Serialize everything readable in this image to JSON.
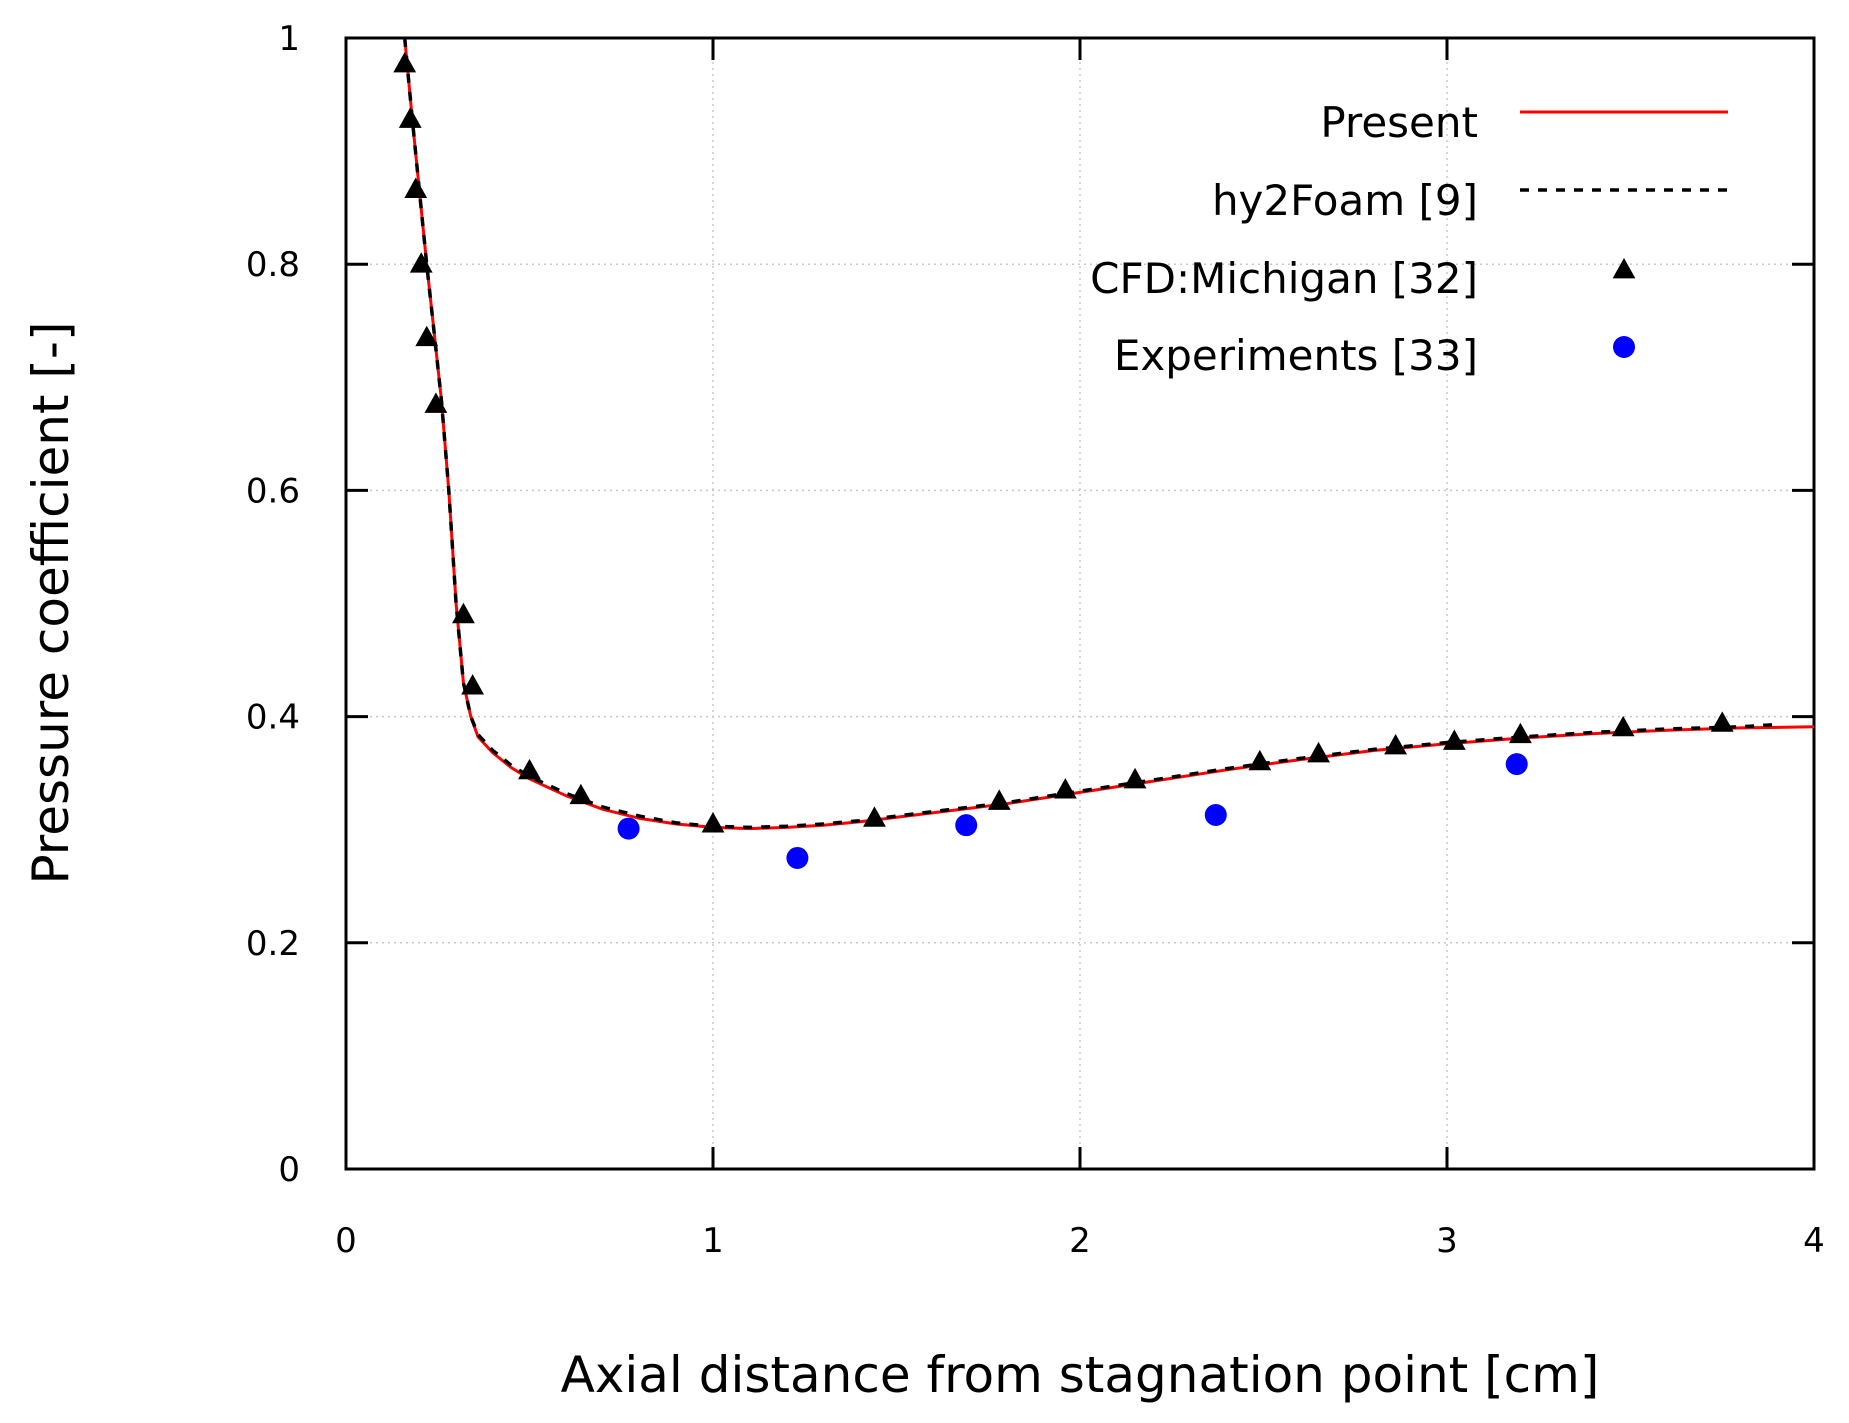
{
  "chart_data": {
    "type": "line",
    "title": "",
    "xlabel": "Axial distance from stagnation point [cm]",
    "ylabel": "Pressure coefficient [-]",
    "xlim": [
      0,
      4
    ],
    "ylim": [
      0,
      1
    ],
    "xticks": [
      0,
      1,
      2,
      3,
      4
    ],
    "xtick_labels": [
      "0",
      "1",
      "2",
      "3",
      "4"
    ],
    "yticks": [
      0,
      0.2,
      0.4,
      0.6,
      0.8,
      1
    ],
    "ytick_labels": [
      "0",
      "0.2",
      "0.4",
      "0.6",
      "0.8",
      "1"
    ],
    "grid": true,
    "legend_position": "top-right",
    "series": [
      {
        "name": "Present",
        "style": "line",
        "color": "#ff0000",
        "x": [
          0.16,
          0.18,
          0.2,
          0.22,
          0.24,
          0.26,
          0.28,
          0.3,
          0.32,
          0.34,
          0.36,
          0.4,
          0.45,
          0.5,
          0.6,
          0.7,
          0.8,
          0.9,
          1.0,
          1.1,
          1.2,
          1.3,
          1.4,
          1.5,
          1.6,
          1.7,
          1.8,
          2.0,
          2.2,
          2.4,
          2.6,
          2.8,
          3.0,
          3.2,
          3.4,
          3.6,
          3.8,
          4.0
        ],
        "y": [
          1.0,
          0.93,
          0.865,
          0.8,
          0.74,
          0.68,
          0.6,
          0.5,
          0.43,
          0.4,
          0.382,
          0.368,
          0.355,
          0.345,
          0.33,
          0.318,
          0.31,
          0.305,
          0.302,
          0.301,
          0.302,
          0.304,
          0.307,
          0.311,
          0.315,
          0.319,
          0.323,
          0.333,
          0.343,
          0.353,
          0.362,
          0.37,
          0.376,
          0.381,
          0.385,
          0.388,
          0.39,
          0.391
        ]
      },
      {
        "name": "hy2Foam [9]",
        "style": "dashed",
        "color": "#000000",
        "x": [
          0.16,
          0.18,
          0.2,
          0.22,
          0.24,
          0.26,
          0.28,
          0.3,
          0.32,
          0.34,
          0.36,
          0.4,
          0.45,
          0.5,
          0.6,
          0.7,
          0.8,
          0.9,
          1.0,
          1.1,
          1.2,
          1.3,
          1.4,
          1.5,
          1.6,
          1.7,
          1.8,
          2.0,
          2.2,
          2.4,
          2.6,
          2.8,
          3.0,
          3.2,
          3.4,
          3.6,
          3.8,
          3.9
        ],
        "y": [
          1.0,
          0.93,
          0.865,
          0.8,
          0.74,
          0.68,
          0.6,
          0.5,
          0.43,
          0.4,
          0.384,
          0.37,
          0.357,
          0.347,
          0.332,
          0.32,
          0.312,
          0.306,
          0.303,
          0.302,
          0.303,
          0.305,
          0.308,
          0.312,
          0.316,
          0.32,
          0.324,
          0.334,
          0.344,
          0.354,
          0.363,
          0.371,
          0.377,
          0.382,
          0.386,
          0.389,
          0.391,
          0.393
        ]
      },
      {
        "name": "CFD:Michigan [32]",
        "style": "triangle",
        "color": "#000000",
        "x": [
          0.16,
          0.175,
          0.19,
          0.205,
          0.22,
          0.245,
          0.32,
          0.345,
          0.5,
          0.64,
          1.0,
          1.44,
          1.78,
          1.96,
          2.15,
          2.49,
          2.65,
          2.86,
          3.02,
          3.2,
          3.48,
          3.75
        ],
        "y": [
          0.977,
          0.928,
          0.866,
          0.8,
          0.735,
          0.676,
          0.49,
          0.427,
          0.352,
          0.33,
          0.305,
          0.31,
          0.325,
          0.335,
          0.344,
          0.36,
          0.367,
          0.374,
          0.378,
          0.384,
          0.39,
          0.394
        ]
      },
      {
        "name": "Experiments [33]",
        "style": "circle",
        "color": "#0000ff",
        "x": [
          0.77,
          1.23,
          1.69,
          2.37,
          3.19
        ],
        "y": [
          0.301,
          0.275,
          0.304,
          0.313,
          0.358
        ]
      }
    ]
  }
}
